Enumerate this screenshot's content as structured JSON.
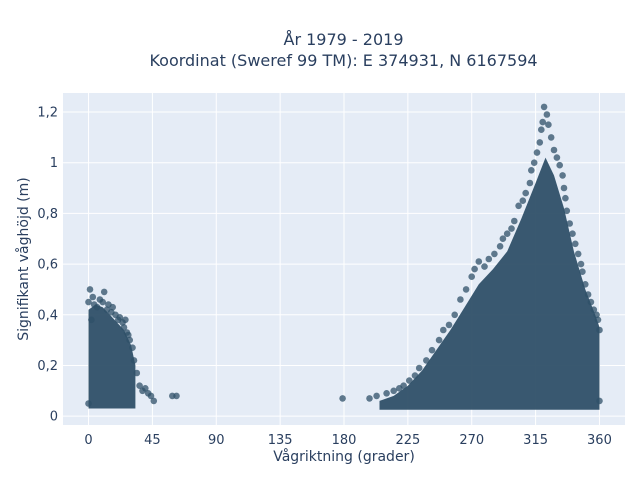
{
  "chart_data": {
    "type": "scatter",
    "title_line1": "År 1979 - 2019",
    "title_line2": "Koordinat (Sweref 99 TM): E 374931, N 6167594",
    "xlabel": "Vågriktning (grader)",
    "ylabel": "Signifikant våghöjd (m)",
    "xlim": [
      -18,
      378
    ],
    "ylim": [
      -0.035,
      1.275
    ],
    "x_ticks": [
      0,
      45,
      90,
      135,
      180,
      225,
      270,
      315,
      360
    ],
    "x_tick_labels": [
      "0",
      "45",
      "90",
      "135",
      "180",
      "225",
      "270",
      "315",
      "360"
    ],
    "y_ticks": [
      0,
      0.2,
      0.4,
      0.6,
      0.8,
      1.0,
      1.2
    ],
    "y_tick_labels": [
      "0",
      "0,2",
      "0,4",
      "0,6",
      "0,8",
      "1",
      "1,2"
    ],
    "grid": true,
    "colors": {
      "marker": "#2f5068",
      "plot_bg": "#e5ecf6",
      "grid": "#ffffff"
    },
    "series": [
      {
        "points": [
          [
            0,
            0.05
          ],
          [
            0,
            0.45
          ],
          [
            1,
            0.5
          ],
          [
            2,
            0.38
          ],
          [
            3,
            0.47
          ],
          [
            4,
            0.44
          ],
          [
            6,
            0.43
          ],
          [
            8,
            0.46
          ],
          [
            10,
            0.45
          ],
          [
            11,
            0.49
          ],
          [
            13,
            0.42
          ],
          [
            14,
            0.44
          ],
          [
            16,
            0.41
          ],
          [
            17,
            0.43
          ],
          [
            19,
            0.4
          ],
          [
            21,
            0.38
          ],
          [
            22,
            0.39
          ],
          [
            24,
            0.37
          ],
          [
            25,
            0.35
          ],
          [
            26,
            0.38
          ],
          [
            27,
            0.33
          ],
          [
            28,
            0.32
          ],
          [
            29,
            0.3
          ],
          [
            31,
            0.27
          ],
          [
            32,
            0.22
          ],
          [
            34,
            0.17
          ],
          [
            36,
            0.12
          ],
          [
            38,
            0.1
          ],
          [
            40,
            0.11
          ],
          [
            42,
            0.09
          ],
          [
            44,
            0.08
          ],
          [
            46,
            0.06
          ],
          [
            59,
            0.08
          ],
          [
            62,
            0.08
          ],
          [
            179,
            0.07
          ],
          [
            198,
            0.07
          ],
          [
            203,
            0.08
          ],
          [
            210,
            0.09
          ],
          [
            215,
            0.1
          ],
          [
            219,
            0.11
          ],
          [
            222,
            0.12
          ],
          [
            226,
            0.14
          ],
          [
            230,
            0.16
          ],
          [
            233,
            0.19
          ],
          [
            238,
            0.22
          ],
          [
            242,
            0.26
          ],
          [
            247,
            0.3
          ],
          [
            250,
            0.34
          ],
          [
            254,
            0.36
          ],
          [
            258,
            0.4
          ],
          [
            262,
            0.46
          ],
          [
            266,
            0.5
          ],
          [
            270,
            0.55
          ],
          [
            272,
            0.58
          ],
          [
            275,
            0.61
          ],
          [
            279,
            0.59
          ],
          [
            282,
            0.62
          ],
          [
            286,
            0.64
          ],
          [
            290,
            0.67
          ],
          [
            292,
            0.7
          ],
          [
            295,
            0.72
          ],
          [
            298,
            0.74
          ],
          [
            300,
            0.77
          ],
          [
            303,
            0.83
          ],
          [
            306,
            0.85
          ],
          [
            308,
            0.88
          ],
          [
            311,
            0.92
          ],
          [
            312,
            0.97
          ],
          [
            314,
            1.0
          ],
          [
            316,
            1.04
          ],
          [
            318,
            1.08
          ],
          [
            319,
            1.13
          ],
          [
            320,
            1.16
          ],
          [
            321,
            1.22
          ],
          [
            323,
            1.19
          ],
          [
            324,
            1.15
          ],
          [
            326,
            1.1
          ],
          [
            328,
            1.05
          ],
          [
            330,
            1.02
          ],
          [
            332,
            0.99
          ],
          [
            334,
            0.95
          ],
          [
            335,
            0.9
          ],
          [
            336,
            0.86
          ],
          [
            337,
            0.81
          ],
          [
            339,
            0.76
          ],
          [
            341,
            0.72
          ],
          [
            343,
            0.68
          ],
          [
            345,
            0.64
          ],
          [
            347,
            0.6
          ],
          [
            348,
            0.57
          ],
          [
            350,
            0.52
          ],
          [
            352,
            0.48
          ],
          [
            354,
            0.45
          ],
          [
            356,
            0.42
          ],
          [
            358,
            0.4
          ],
          [
            359,
            0.38
          ],
          [
            360,
            0.34
          ],
          [
            360,
            0.06
          ]
        ]
      }
    ],
    "density_regions": [
      {
        "x": [
          0,
          33
        ],
        "y_top": [
          [
            0,
            0.42
          ],
          [
            5,
            0.44
          ],
          [
            10,
            0.43
          ],
          [
            15,
            0.4
          ],
          [
            20,
            0.37
          ],
          [
            25,
            0.34
          ],
          [
            30,
            0.28
          ],
          [
            33,
            0.2
          ]
        ],
        "y_bottom": 0.03
      },
      {
        "x": [
          205,
          360
        ],
        "y_top": [
          [
            205,
            0.06
          ],
          [
            215,
            0.08
          ],
          [
            225,
            0.12
          ],
          [
            235,
            0.18
          ],
          [
            245,
            0.26
          ],
          [
            255,
            0.34
          ],
          [
            265,
            0.43
          ],
          [
            275,
            0.52
          ],
          [
            285,
            0.58
          ],
          [
            295,
            0.65
          ],
          [
            305,
            0.78
          ],
          [
            315,
            0.92
          ],
          [
            322,
            1.02
          ],
          [
            328,
            0.95
          ],
          [
            335,
            0.82
          ],
          [
            342,
            0.65
          ],
          [
            350,
            0.5
          ],
          [
            357,
            0.4
          ],
          [
            360,
            0.35
          ]
        ],
        "y_bottom": 0.025
      }
    ]
  }
}
